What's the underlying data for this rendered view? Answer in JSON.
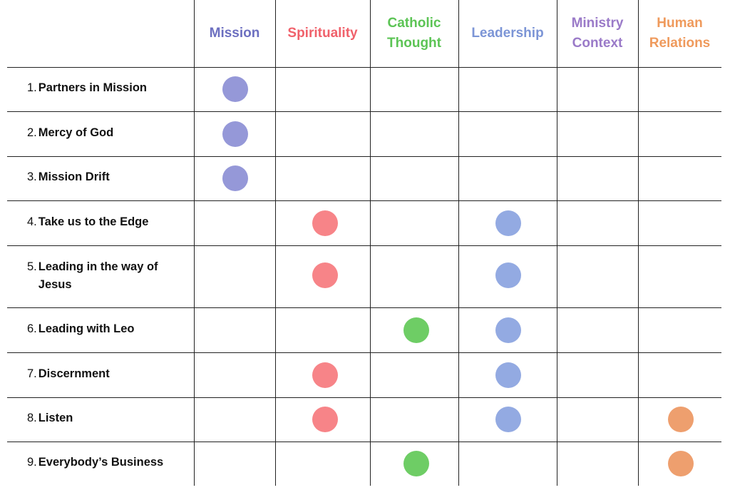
{
  "columns": [
    {
      "key": "mission",
      "label": "Mission",
      "color": "#6c6fc0"
    },
    {
      "key": "spirituality",
      "label": "Spirituality",
      "color": "#f0616b"
    },
    {
      "key": "catholic_thought",
      "label": "Catholic Thought",
      "color": "#5cc455"
    },
    {
      "key": "leadership",
      "label": "Leadership",
      "color": "#7c95d6"
    },
    {
      "key": "ministry_context",
      "label": "Ministry Context",
      "color": "#9a7ac8"
    },
    {
      "key": "human_relations",
      "label": "Human Relations",
      "color": "#ef9a5c"
    }
  ],
  "dot_colors": {
    "mission": "#9598d8",
    "spirituality": "#f78488",
    "catholic_thought": "#6ecd65",
    "leadership": "#93aae2",
    "ministry_context": "#b39bd8",
    "human_relations": "#ee9f6e"
  },
  "rows": [
    {
      "number": "1.",
      "title": "Partners in Mission",
      "marks": [
        "mission"
      ]
    },
    {
      "number": "2.",
      "title": "Mercy of God",
      "marks": [
        "mission"
      ]
    },
    {
      "number": "3.",
      "title": "Mission Drift",
      "marks": [
        "mission"
      ]
    },
    {
      "number": "4.",
      "title": "Take us to the Edge",
      "marks": [
        "spirituality",
        "leadership"
      ]
    },
    {
      "number": "5.",
      "title": "Leading in the way of Jesus",
      "marks": [
        "spirituality",
        "leadership"
      ]
    },
    {
      "number": "6.",
      "title": "Leading with Leo",
      "marks": [
        "catholic_thought",
        "leadership"
      ]
    },
    {
      "number": "7.",
      "title": "Discernment",
      "marks": [
        "spirituality",
        "leadership"
      ]
    },
    {
      "number": "8.",
      "title": "Listen",
      "marks": [
        "spirituality",
        "leadership",
        "human_relations"
      ]
    },
    {
      "number": "9.",
      "title": "Everybody’s Business",
      "marks": [
        "catholic_thought",
        "human_relations"
      ]
    }
  ]
}
